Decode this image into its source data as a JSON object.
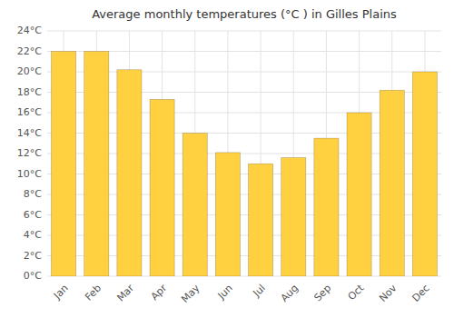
{
  "chart_data": {
    "type": "bar",
    "title": "Average monthly temperatures (°C ) in Gilles Plains",
    "categories": [
      "Jan",
      "Feb",
      "Mar",
      "Apr",
      "May",
      "Jun",
      "Jul",
      "Aug",
      "Sep",
      "Oct",
      "Nov",
      "Dec"
    ],
    "values": [
      22.0,
      22.0,
      20.2,
      17.3,
      14.0,
      12.1,
      11.0,
      11.6,
      13.5,
      16.0,
      18.2,
      20.0
    ],
    "color": "#FFD040",
    "ylim": [
      0,
      24
    ],
    "yticks": [
      {
        "value": 0,
        "label": "0°C"
      },
      {
        "value": 2,
        "label": "2°C"
      },
      {
        "value": 4,
        "label": "4°C"
      },
      {
        "value": 6,
        "label": "6°C"
      },
      {
        "value": 8,
        "label": "8°C"
      },
      {
        "value": 10,
        "label": "10°C"
      },
      {
        "value": 12,
        "label": "12°C"
      },
      {
        "value": 14,
        "label": "14°C"
      },
      {
        "value": 16,
        "label": "16°C"
      },
      {
        "value": 18,
        "label": "18°C"
      },
      {
        "value": 20,
        "label": "20°C"
      },
      {
        "value": 22,
        "label": "22°C"
      },
      {
        "value": 24,
        "label": "24°C"
      }
    ],
    "grid": true
  }
}
